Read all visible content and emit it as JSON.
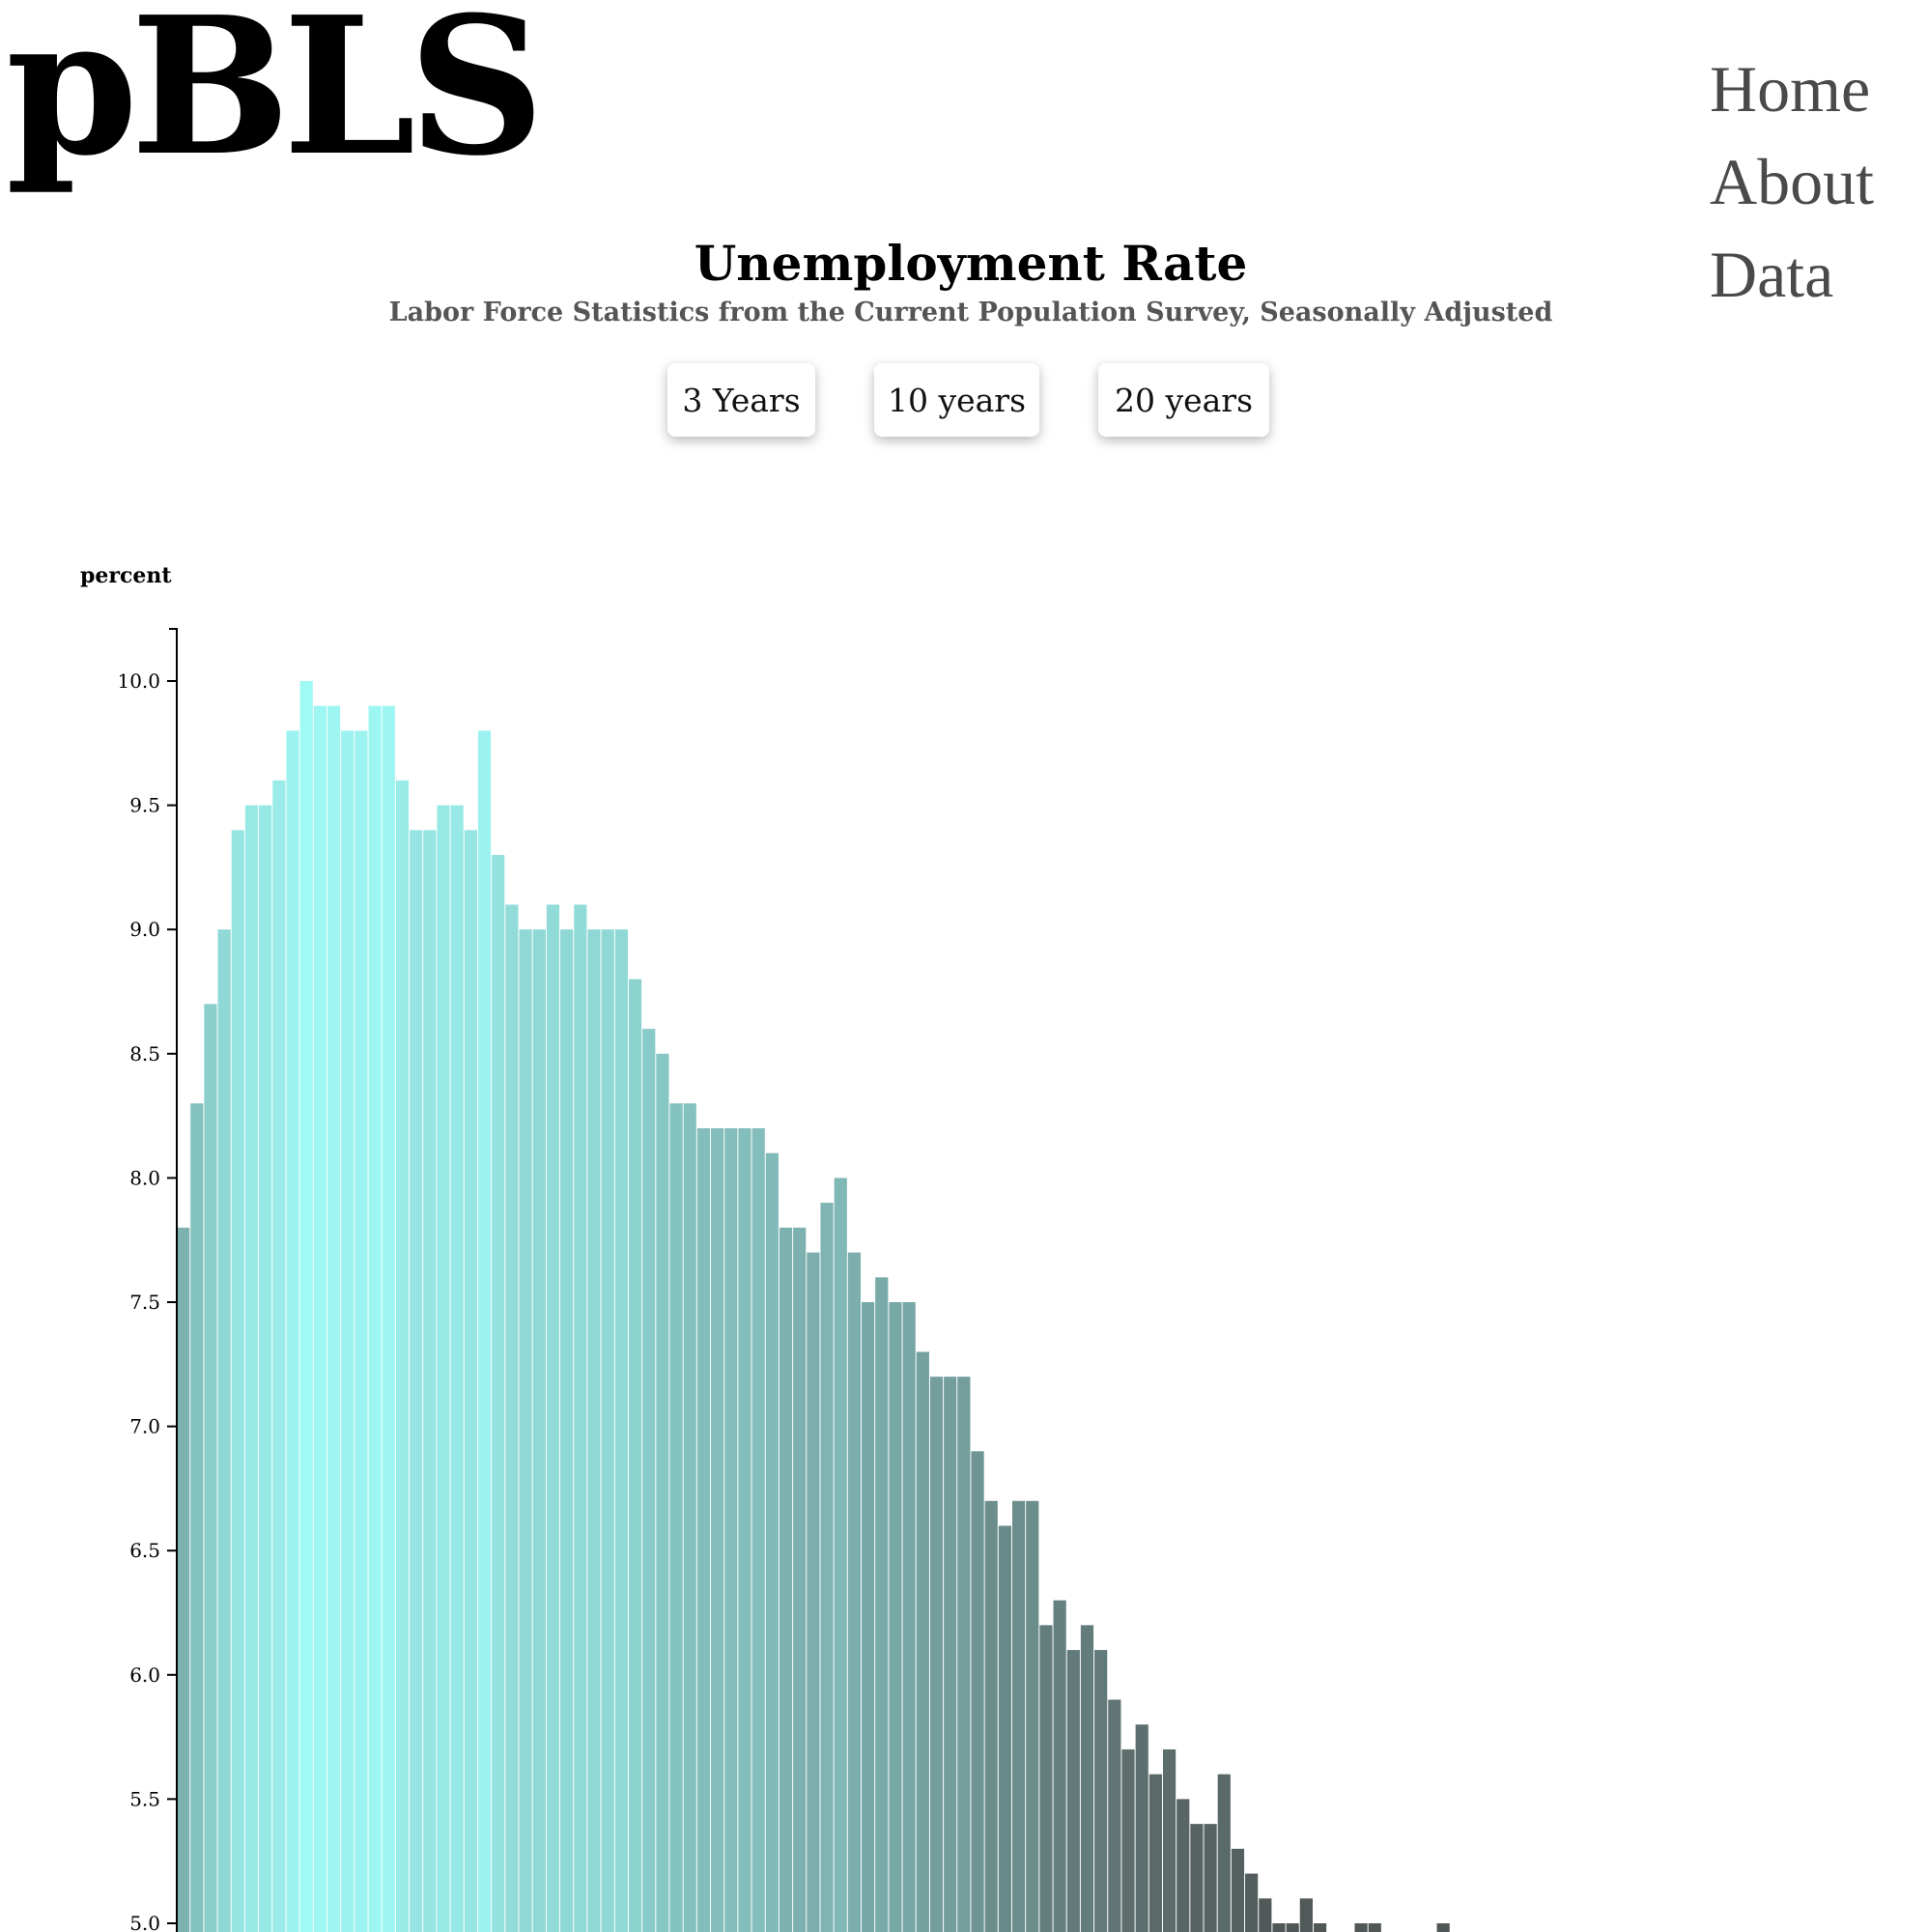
{
  "header": {
    "logo": "pBLS",
    "nav": [
      {
        "label": "Home"
      },
      {
        "label": "About"
      },
      {
        "label": "Data"
      }
    ]
  },
  "page": {
    "title": "Unemployment Rate",
    "subtitle": "Labor Force Statistics from the Current Population Survey, Seasonally Adjusted"
  },
  "range_buttons": [
    {
      "label": "3 Years"
    },
    {
      "label": "10 years"
    },
    {
      "label": "20 years"
    }
  ],
  "colors": {
    "bar_low": "#4f5353",
    "bar_high": "#9ff9f5"
  },
  "chart_data": {
    "type": "bar",
    "title": "",
    "ylabel": "percent",
    "ylim": [
      4.9,
      10.2
    ],
    "yticks": [
      "10.0",
      "9.5",
      "9.0",
      "8.5",
      "8.0",
      "7.5",
      "7.0",
      "6.5",
      "6.0",
      "5.5",
      "5.0"
    ],
    "values": [
      7.8,
      8.3,
      8.7,
      9.0,
      9.4,
      9.5,
      9.5,
      9.6,
      9.8,
      10.0,
      9.9,
      9.9,
      9.8,
      9.8,
      9.9,
      9.9,
      9.6,
      9.4,
      9.4,
      9.5,
      9.5,
      9.4,
      9.8,
      9.3,
      9.1,
      9.0,
      9.0,
      9.1,
      9.0,
      9.1,
      9.0,
      9.0,
      9.0,
      8.8,
      8.6,
      8.5,
      8.3,
      8.3,
      8.2,
      8.2,
      8.2,
      8.2,
      8.2,
      8.1,
      7.8,
      7.8,
      7.7,
      7.9,
      8.0,
      7.7,
      7.5,
      7.6,
      7.5,
      7.5,
      7.3,
      7.2,
      7.2,
      7.2,
      6.9,
      6.7,
      6.6,
      6.7,
      6.7,
      6.2,
      6.3,
      6.1,
      6.2,
      6.1,
      5.9,
      5.7,
      5.8,
      5.6,
      5.7,
      5.5,
      5.4,
      5.4,
      5.6,
      5.3,
      5.2,
      5.1,
      5.0,
      5.0,
      5.1,
      5.0,
      4.9,
      4.9,
      5.0,
      5.0,
      4.9,
      4.9,
      4.9,
      4.9,
      5.0,
      4.9,
      4.9
    ]
  }
}
